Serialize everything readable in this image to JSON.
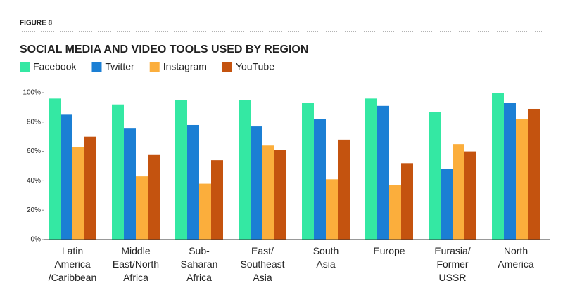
{
  "figure_label": "FIGURE 8",
  "chart_data": {
    "type": "bar",
    "title": "SOCIAL MEDIA AND VIDEO TOOLS USED BY REGION",
    "categories": [
      "Latin\nAmerica\n/Caribbean",
      "Middle\nEast/North\nAfrica",
      "Sub-\nSaharan\nAfrica",
      "East/\nSoutheast\nAsia",
      "South\nAsia",
      "Europe",
      "Eurasia/\nFormer\nUSSR",
      "North\nAmerica"
    ],
    "series": [
      {
        "name": "Facebook",
        "color": "#34e8a3",
        "values": [
          96,
          92,
          95,
          95,
          93,
          96,
          87,
          100
        ]
      },
      {
        "name": "Twitter",
        "color": "#1b7fd4",
        "values": [
          85,
          76,
          78,
          77,
          82,
          91,
          48,
          93
        ]
      },
      {
        "name": "Instagram",
        "color": "#fbae3c",
        "values": [
          63,
          43,
          38,
          64,
          41,
          37,
          65,
          82
        ]
      },
      {
        "name": "YouTube",
        "color": "#c4530f",
        "values": [
          70,
          58,
          54,
          61,
          68,
          52,
          60,
          89
        ]
      }
    ],
    "ylim": [
      0,
      100
    ],
    "yticks": [
      {
        "value": 0,
        "label": "0%"
      },
      {
        "value": 20,
        "label": "20%"
      },
      {
        "value": 40,
        "label": "40%"
      },
      {
        "value": 60,
        "label": "60%"
      },
      {
        "value": 80,
        "label": "80%"
      },
      {
        "value": 100,
        "label": "100%"
      }
    ],
    "grid": false,
    "legend": "top-left"
  }
}
